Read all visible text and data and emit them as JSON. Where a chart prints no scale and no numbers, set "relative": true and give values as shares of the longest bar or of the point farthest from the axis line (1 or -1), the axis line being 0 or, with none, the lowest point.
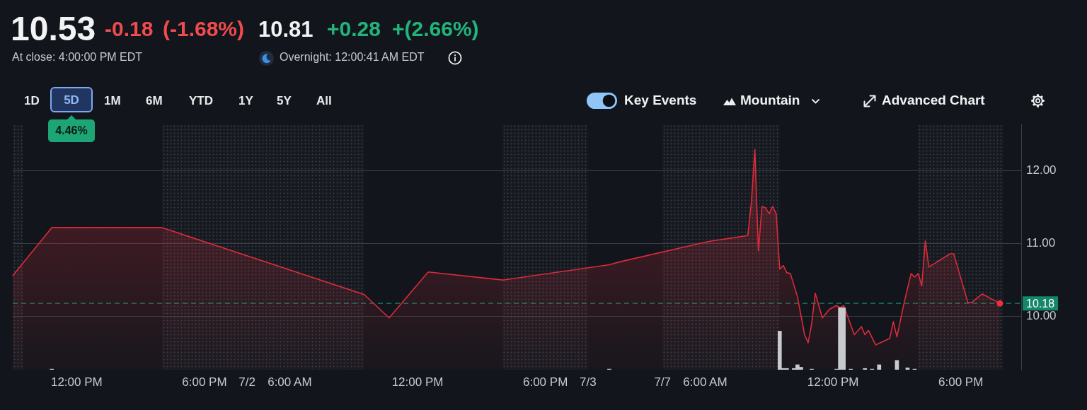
{
  "chart_data": [
    {
      "type": "other",
      "annotations": [
        "10.53",
        "-0.18",
        "(-1.68%)",
        "10.81",
        "+0.28",
        "+(2.66%)",
        "At close: 4:00:00 PM EDT",
        "Overnight: 12:00:41 AM EDT",
        "1D",
        "5D",
        "1M",
        "6M",
        "YTD",
        "1Y",
        "5Y",
        "All",
        "4.46%",
        "Key Events",
        "Mountain",
        "Advanced Chart"
      ]
    },
    {
      "type": "area",
      "categories": [
        null,
        null,
        null,
        null,
        null,
        null,
        null,
        null,
        null,
        null,
        null,
        null,
        null,
        null,
        null,
        null,
        null,
        null,
        "12:00 PM",
        null,
        null,
        null,
        null,
        null,
        null,
        null,
        null,
        null,
        null,
        null,
        null,
        null,
        null,
        null,
        null,
        null,
        null,
        null,
        null,
        null,
        null,
        null,
        null,
        null,
        null,
        null,
        null,
        null,
        null,
        null,
        null,
        null,
        null,
        null,
        "6:00 PM",
        null,
        null,
        null,
        null,
        null,
        null,
        null,
        null,
        null,
        null,
        null,
        "7/2",
        null,
        null,
        null,
        null,
        null,
        null,
        null,
        null,
        null,
        null,
        null,
        "6:00 AM",
        null,
        null,
        null,
        null,
        null,
        null,
        null,
        null,
        null,
        null,
        null,
        null,
        null,
        null,
        null,
        null,
        null,
        null,
        null,
        null,
        null,
        null,
        null,
        null,
        null,
        null,
        null,
        null,
        null,
        null,
        null,
        null,
        null,
        null,
        null,
        "12:00 PM",
        null,
        null,
        null,
        null,
        null,
        null,
        null,
        null,
        null,
        null,
        null,
        null,
        null,
        null,
        null,
        null,
        null,
        null,
        null,
        null,
        null,
        null,
        null,
        null,
        null,
        null,
        null,
        null,
        null,
        null,
        null,
        null,
        null,
        null,
        null,
        "6:00 PM",
        null,
        null,
        null,
        null,
        null,
        null,
        null,
        null,
        null,
        null,
        null,
        "7/3",
        null,
        null,
        null,
        null,
        null,
        null,
        null,
        null,
        null,
        null,
        null,
        null,
        null,
        null,
        null,
        null,
        null,
        null,
        null,
        null,
        "7/7",
        null,
        null,
        null,
        null,
        null,
        null,
        null,
        null,
        null,
        null,
        null,
        "6:00 AM",
        null,
        null,
        null,
        null,
        null,
        null,
        null,
        null,
        null,
        null,
        null,
        null,
        null,
        null,
        null,
        null,
        null,
        null,
        null,
        null,
        null,
        null,
        null,
        null,
        null,
        null,
        null,
        null,
        null,
        null,
        null,
        null,
        null,
        null,
        null,
        "12:00 PM",
        null,
        null,
        null,
        null,
        null,
        null,
        null,
        null,
        null,
        null,
        null,
        null,
        null,
        null,
        null,
        null,
        null,
        null,
        null,
        null,
        null,
        null,
        null,
        null,
        null,
        null,
        null,
        null,
        null,
        null,
        null,
        null,
        null,
        null,
        null,
        "6:00 PM",
        null,
        null,
        null,
        null,
        null,
        null,
        null,
        null,
        null,
        null,
        null,
        null,
        null,
        null,
        null,
        null,
        null
      ],
      "series": [
        {
          "color": "#dc2b3b",
          "values": [
            10.56,
            null,
            null,
            null,
            null,
            null,
            null,
            null,
            null,
            null,
            null,
            11.22,
            null,
            null,
            null,
            null,
            null,
            null,
            null,
            null,
            null,
            null,
            null,
            null,
            null,
            null,
            null,
            null,
            null,
            null,
            null,
            null,
            null,
            null,
            null,
            null,
            null,
            null,
            null,
            null,
            null,
            null,
            11.22,
            null,
            null,
            null,
            null,
            null,
            null,
            null,
            null,
            null,
            null,
            null,
            null,
            null,
            null,
            null,
            null,
            null,
            null,
            null,
            null,
            null,
            null,
            null,
            null,
            null,
            null,
            null,
            null,
            null,
            null,
            null,
            null,
            null,
            null,
            null,
            null,
            null,
            null,
            null,
            null,
            null,
            null,
            null,
            null,
            null,
            null,
            null,
            null,
            null,
            null,
            null,
            null,
            null,
            null,
            null,
            null,
            10.3,
            null,
            null,
            null,
            null,
            null,
            null,
            9.98,
            null,
            null,
            null,
            null,
            null,
            null,
            null,
            null,
            null,
            null,
            10.61,
            null,
            null,
            null,
            null,
            null,
            null,
            null,
            null,
            null,
            null,
            null,
            null,
            null,
            null,
            null,
            null,
            null,
            null,
            null,
            null,
            10.5,
            null,
            null,
            null,
            null,
            null,
            null,
            null,
            null,
            null,
            null,
            null,
            null,
            null,
            null,
            null,
            null,
            null,
            null,
            null,
            null,
            null,
            null,
            null,
            null,
            null,
            null,
            null,
            null,
            null,
            10.71,
            null,
            null,
            10.75,
            null,
            null,
            null,
            null,
            null,
            null,
            null,
            null,
            null,
            null,
            null,
            null,
            null,
            null,
            null,
            null,
            null,
            null,
            null,
            null,
            null,
            null,
            null,
            null,
            11.03,
            null,
            null,
            null,
            null,
            null,
            null,
            null,
            null,
            null,
            null,
            11.11,
            11.56,
            12.29,
            10.9,
            11.51,
            11.49,
            11.41,
            11.51,
            11.41,
            10.65,
            10.7,
            10.6,
            10.59,
            null,
            10.27,
            null,
            9.75,
            9.64,
            9.9,
            10.32,
            null,
            9.98,
            null,
            10.1,
            null,
            10.15,
            10.12,
            10.15,
            10.02,
            null,
            9.75,
            null,
            9.86,
            9.75,
            9.81,
            null,
            9.61,
            null,
            null,
            null,
            9.7,
            9.93,
            9.72,
            null,
            10.18,
            null,
            10.59,
            10.54,
            10.59,
            10.42,
            11.04,
            10.68,
            null,
            null,
            null,
            null,
            null,
            10.86,
            10.86,
            null,
            null,
            null,
            10.19,
            10.19,
            null,
            null,
            10.31,
            null,
            null,
            null,
            null,
            10.18,
            null,
            null,
            null,
            null,
            null,
            null
          ]
        },
        {
          "type": "scatter",
          "color": "#ef2f3f",
          "marker": "circle",
          "values": [
            null,
            null,
            null,
            null,
            null,
            null,
            null,
            null,
            null,
            null,
            null,
            null,
            null,
            null,
            null,
            null,
            null,
            null,
            null,
            null,
            null,
            null,
            null,
            null,
            null,
            null,
            null,
            null,
            null,
            null,
            null,
            null,
            null,
            null,
            null,
            null,
            null,
            null,
            null,
            null,
            null,
            null,
            null,
            null,
            null,
            null,
            null,
            null,
            null,
            null,
            null,
            null,
            null,
            null,
            null,
            null,
            null,
            null,
            null,
            null,
            null,
            null,
            null,
            null,
            null,
            null,
            null,
            null,
            null,
            null,
            null,
            null,
            null,
            null,
            null,
            null,
            null,
            null,
            null,
            null,
            null,
            null,
            null,
            null,
            null,
            null,
            null,
            null,
            null,
            null,
            null,
            null,
            null,
            null,
            null,
            null,
            null,
            null,
            null,
            null,
            null,
            null,
            null,
            null,
            null,
            null,
            null,
            null,
            null,
            null,
            null,
            null,
            null,
            null,
            null,
            null,
            null,
            null,
            null,
            null,
            null,
            null,
            null,
            null,
            null,
            null,
            null,
            null,
            null,
            null,
            null,
            null,
            null,
            null,
            null,
            null,
            null,
            null,
            null,
            null,
            null,
            null,
            null,
            null,
            null,
            null,
            null,
            null,
            null,
            null,
            null,
            null,
            null,
            null,
            null,
            null,
            null,
            null,
            null,
            null,
            null,
            null,
            null,
            null,
            null,
            null,
            null,
            null,
            null,
            null,
            null,
            null,
            null,
            null,
            null,
            null,
            null,
            null,
            null,
            null,
            null,
            null,
            null,
            null,
            null,
            null,
            null,
            null,
            null,
            null,
            null,
            null,
            null,
            null,
            null,
            null,
            null,
            null,
            null,
            null,
            null,
            null,
            null,
            null,
            null,
            null,
            null,
            null,
            null,
            null,
            null,
            null,
            null,
            null,
            null,
            null,
            null,
            null,
            null,
            null,
            null,
            null,
            null,
            null,
            null,
            null,
            null,
            null,
            null,
            null,
            null,
            null,
            null,
            null,
            null,
            null,
            null,
            null,
            null,
            null,
            null,
            null,
            null,
            null,
            null,
            null,
            null,
            null,
            null,
            null,
            null,
            null,
            null,
            null,
            null,
            null,
            null,
            null,
            null,
            null,
            null,
            null,
            null,
            null,
            null,
            null,
            null,
            null,
            null,
            null,
            null,
            null,
            null,
            null,
            null,
            null,
            null,
            null,
            10.18,
            null,
            null,
            null,
            null,
            null,
            null
          ]
        }
      ],
      "ylim": [
        9.27,
        12.64
      ],
      "yticks": [
        {
          "value": 10,
          "label": "10.00"
        },
        {
          "value": 11,
          "label": "11.00"
        },
        {
          "value": 12,
          "label": "12.00"
        }
      ],
      "grid": "y",
      "ref_lines": [
        {
          "axis": "y",
          "value": 10.18,
          "label": "10.18",
          "color": "#14866a",
          "line_style": "dashed"
        }
      ]
    },
    {
      "type": "bar",
      "relative": true,
      "categories": [
        null,
        null,
        null,
        null,
        null,
        null,
        null,
        null,
        null,
        null,
        null,
        null,
        null,
        null,
        null,
        null,
        null,
        null,
        null,
        null,
        null,
        null,
        null,
        null,
        null,
        null,
        null,
        null,
        null,
        null,
        null,
        null,
        null,
        null,
        null,
        null,
        null,
        null,
        null,
        null,
        null,
        null,
        null,
        null,
        null,
        null,
        null,
        null,
        null,
        null,
        null,
        null,
        null,
        null,
        null,
        null,
        null,
        null,
        null,
        null,
        null,
        null,
        null,
        null,
        null,
        null,
        null,
        null,
        null,
        null,
        null,
        null,
        null,
        null,
        null,
        null,
        null,
        null,
        null,
        null,
        null,
        null,
        null,
        null,
        null,
        null,
        null,
        null,
        null,
        null,
        null,
        null,
        null,
        null,
        null,
        null,
        null,
        null,
        null,
        null,
        null,
        null,
        null,
        null,
        null,
        null,
        null,
        null,
        null,
        null,
        null,
        null,
        null,
        null,
        null,
        null,
        null,
        null,
        null,
        null,
        null,
        null,
        null,
        null,
        null,
        null,
        null,
        null,
        null,
        null,
        null,
        null,
        null,
        null,
        null,
        null,
        null,
        null,
        null,
        null,
        null,
        null,
        null,
        null,
        null,
        null,
        null,
        null,
        null,
        null,
        null,
        null,
        null,
        null,
        null,
        null,
        null,
        null,
        null,
        null,
        null,
        null,
        null,
        null,
        null,
        null,
        null,
        null,
        null,
        null,
        null,
        null,
        null,
        null,
        null,
        null,
        null,
        null,
        null,
        null,
        null,
        null,
        null,
        null,
        null,
        null,
        null,
        null,
        null,
        null,
        null,
        null,
        null,
        null,
        null,
        null,
        null,
        null,
        null,
        null,
        null,
        null,
        null,
        null,
        null,
        null,
        null,
        null,
        null,
        null,
        null,
        null,
        null,
        null,
        null,
        null,
        null,
        null,
        null,
        null,
        null,
        null,
        null,
        null,
        null,
        null,
        null,
        null,
        null,
        null,
        null,
        null,
        null,
        null,
        null,
        null,
        null,
        null,
        null,
        null,
        null,
        null,
        null,
        null,
        null,
        null,
        null,
        null,
        null,
        null,
        null,
        null,
        null,
        null,
        null,
        null,
        null,
        null,
        null,
        null,
        null,
        null,
        null,
        null,
        null,
        null,
        null,
        null,
        null,
        null,
        null,
        null,
        null,
        null,
        null,
        null,
        null,
        null,
        null,
        null,
        null,
        null,
        null,
        null,
        null
      ],
      "values": [
        null,
        null,
        null,
        null,
        null,
        null,
        null,
        null,
        null,
        null,
        null,
        0.01,
        null,
        null,
        null,
        null,
        null,
        null,
        null,
        null,
        null,
        null,
        null,
        null,
        null,
        null,
        null,
        null,
        null,
        null,
        null,
        null,
        null,
        null,
        null,
        null,
        null,
        null,
        null,
        null,
        null,
        null,
        null,
        null,
        null,
        null,
        null,
        null,
        null,
        null,
        null,
        null,
        null,
        null,
        null,
        null,
        null,
        null,
        null,
        null,
        null,
        null,
        null,
        null,
        null,
        null,
        null,
        null,
        null,
        null,
        null,
        null,
        null,
        null,
        null,
        null,
        null,
        null,
        null,
        null,
        null,
        null,
        null,
        null,
        null,
        null,
        null,
        null,
        null,
        null,
        null,
        null,
        null,
        null,
        null,
        null,
        null,
        null,
        null,
        null,
        null,
        null,
        null,
        null,
        null,
        null,
        null,
        null,
        null,
        null,
        null,
        null,
        null,
        null,
        null,
        null,
        null,
        null,
        null,
        null,
        null,
        null,
        null,
        null,
        null,
        null,
        null,
        null,
        null,
        null,
        null,
        null,
        null,
        null,
        null,
        null,
        null,
        null,
        null,
        null,
        null,
        null,
        null,
        null,
        null,
        null,
        null,
        null,
        null,
        null,
        null,
        null,
        null,
        null,
        null,
        null,
        null,
        null,
        null,
        null,
        null,
        null,
        null,
        null,
        null,
        null,
        null,
        null,
        0.01,
        null,
        null,
        null,
        null,
        null,
        null,
        null,
        null,
        null,
        null,
        null,
        null,
        null,
        null,
        null,
        null,
        null,
        null,
        null,
        null,
        null,
        null,
        null,
        null,
        null,
        null,
        null,
        null,
        null,
        null,
        null,
        null,
        null,
        null,
        null,
        null,
        null,
        null,
        null,
        null,
        null,
        null,
        null,
        null,
        null,
        null,
        null,
        0.62,
        0.02,
        0.02,
        null,
        0.02,
        0.08,
        0.04,
        null,
        null,
        0.01,
        null,
        null,
        null,
        null,
        null,
        null,
        0.01,
        1,
        1,
        null,
        0.01,
        null,
        null,
        null,
        0.02,
        null,
        0.01,
        null,
        0.08,
        null,
        null,
        null,
        null,
        0.15,
        null,
        null,
        0.03,
        null,
        0.01,
        null,
        null,
        null,
        null,
        null,
        null,
        null,
        null,
        null,
        null,
        null,
        null,
        null,
        null,
        null,
        null,
        null,
        null,
        null,
        null,
        null,
        null,
        null,
        null,
        null,
        null,
        null,
        null,
        null,
        null
      ],
      "color": "#c9cacd",
      "tick_labels": false
    }
  ]
}
